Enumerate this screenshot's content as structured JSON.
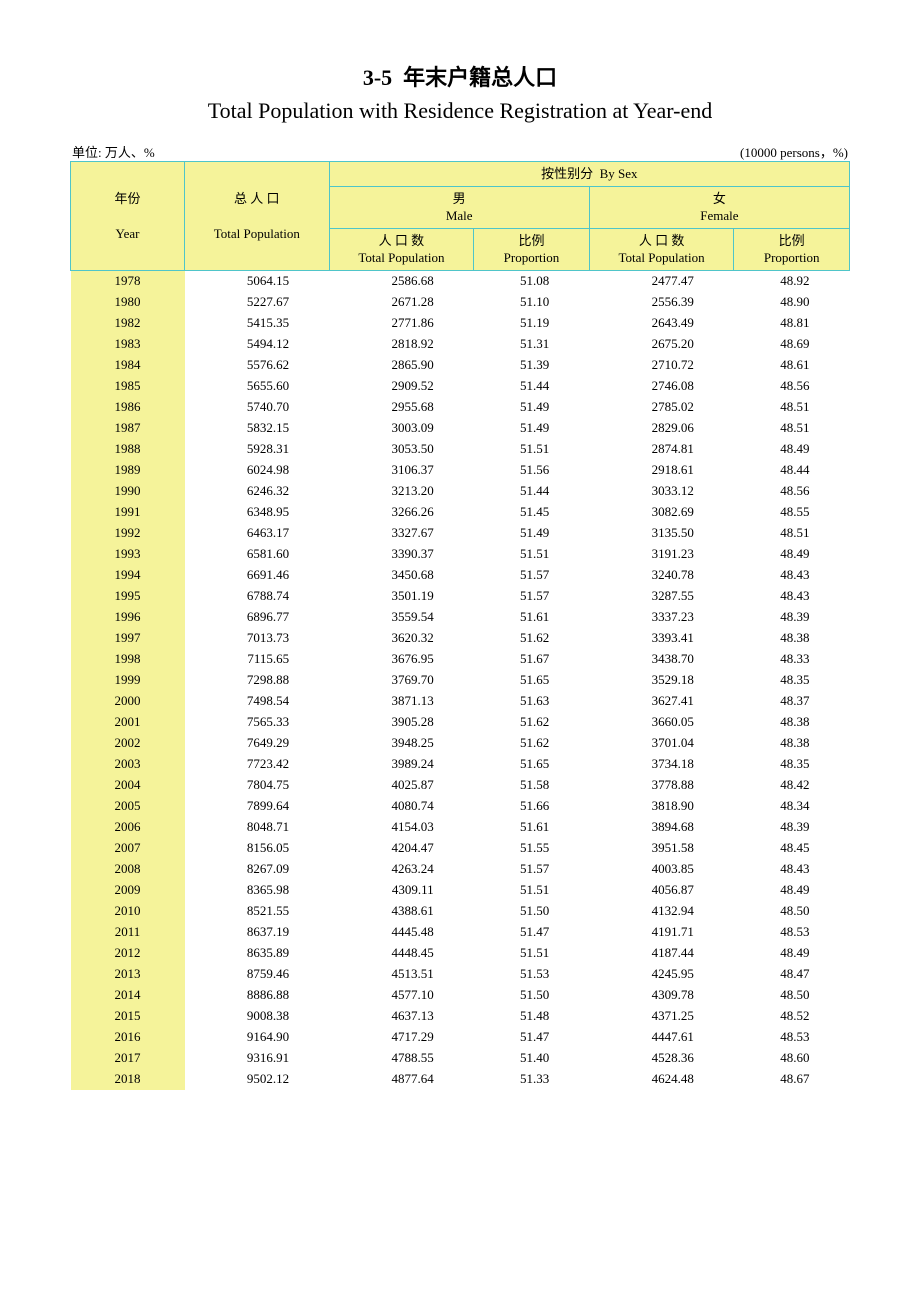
{
  "title": {
    "number": "3-5",
    "cn": "年末户籍总人口",
    "en": "Total Population with Residence Registration at Year-end"
  },
  "unit": {
    "left": "单位: 万人、%",
    "right": "(10000 persons，%)"
  },
  "header": {
    "year_cn": "年份",
    "year_en": "Year",
    "total_cn": "总 人 口",
    "total_en": "Total Population",
    "bysex_cn": "按性别分",
    "bysex_en": "By Sex",
    "male_cn": "男",
    "male_en": "Male",
    "female_cn": "女",
    "female_en": "Female",
    "pop_cn": "人 口 数",
    "pop_en": "Total Population",
    "prop_cn": "比例",
    "prop_en": "Proportion"
  },
  "styling": {
    "header_bg": "#f5f39a",
    "border_color": "#4fc5c9",
    "page_bg": "#ffffff",
    "text_color": "#000000",
    "title_fontsize": 22,
    "body_fontsize": 13,
    "columns": [
      "year",
      "total",
      "male_pop",
      "male_prop",
      "female_pop",
      "female_prop"
    ],
    "column_align": [
      "center",
      "right",
      "right",
      "right",
      "right",
      "right"
    ]
  },
  "rows": [
    {
      "year": "1978",
      "total": "5064.15",
      "male_pop": "2586.68",
      "male_prop": "51.08",
      "female_pop": "2477.47",
      "female_prop": "48.92"
    },
    {
      "year": "1980",
      "total": "5227.67",
      "male_pop": "2671.28",
      "male_prop": "51.10",
      "female_pop": "2556.39",
      "female_prop": "48.90"
    },
    {
      "year": "1982",
      "total": "5415.35",
      "male_pop": "2771.86",
      "male_prop": "51.19",
      "female_pop": "2643.49",
      "female_prop": "48.81"
    },
    {
      "year": "1983",
      "total": "5494.12",
      "male_pop": "2818.92",
      "male_prop": "51.31",
      "female_pop": "2675.20",
      "female_prop": "48.69"
    },
    {
      "year": "1984",
      "total": "5576.62",
      "male_pop": "2865.90",
      "male_prop": "51.39",
      "female_pop": "2710.72",
      "female_prop": "48.61"
    },
    {
      "year": "1985",
      "total": "5655.60",
      "male_pop": "2909.52",
      "male_prop": "51.44",
      "female_pop": "2746.08",
      "female_prop": "48.56"
    },
    {
      "year": "1986",
      "total": "5740.70",
      "male_pop": "2955.68",
      "male_prop": "51.49",
      "female_pop": "2785.02",
      "female_prop": "48.51"
    },
    {
      "year": "1987",
      "total": "5832.15",
      "male_pop": "3003.09",
      "male_prop": "51.49",
      "female_pop": "2829.06",
      "female_prop": "48.51"
    },
    {
      "year": "1988",
      "total": "5928.31",
      "male_pop": "3053.50",
      "male_prop": "51.51",
      "female_pop": "2874.81",
      "female_prop": "48.49"
    },
    {
      "year": "1989",
      "total": "6024.98",
      "male_pop": "3106.37",
      "male_prop": "51.56",
      "female_pop": "2918.61",
      "female_prop": "48.44"
    },
    {
      "year": "1990",
      "total": "6246.32",
      "male_pop": "3213.20",
      "male_prop": "51.44",
      "female_pop": "3033.12",
      "female_prop": "48.56"
    },
    {
      "year": "1991",
      "total": "6348.95",
      "male_pop": "3266.26",
      "male_prop": "51.45",
      "female_pop": "3082.69",
      "female_prop": "48.55"
    },
    {
      "year": "1992",
      "total": "6463.17",
      "male_pop": "3327.67",
      "male_prop": "51.49",
      "female_pop": "3135.50",
      "female_prop": "48.51"
    },
    {
      "year": "1993",
      "total": "6581.60",
      "male_pop": "3390.37",
      "male_prop": "51.51",
      "female_pop": "3191.23",
      "female_prop": "48.49"
    },
    {
      "year": "1994",
      "total": "6691.46",
      "male_pop": "3450.68",
      "male_prop": "51.57",
      "female_pop": "3240.78",
      "female_prop": "48.43"
    },
    {
      "year": "1995",
      "total": "6788.74",
      "male_pop": "3501.19",
      "male_prop": "51.57",
      "female_pop": "3287.55",
      "female_prop": "48.43"
    },
    {
      "year": "1996",
      "total": "6896.77",
      "male_pop": "3559.54",
      "male_prop": "51.61",
      "female_pop": "3337.23",
      "female_prop": "48.39"
    },
    {
      "year": "1997",
      "total": "7013.73",
      "male_pop": "3620.32",
      "male_prop": "51.62",
      "female_pop": "3393.41",
      "female_prop": "48.38"
    },
    {
      "year": "1998",
      "total": "7115.65",
      "male_pop": "3676.95",
      "male_prop": "51.67",
      "female_pop": "3438.70",
      "female_prop": "48.33"
    },
    {
      "year": "1999",
      "total": "7298.88",
      "male_pop": "3769.70",
      "male_prop": "51.65",
      "female_pop": "3529.18",
      "female_prop": "48.35"
    },
    {
      "year": "2000",
      "total": "7498.54",
      "male_pop": "3871.13",
      "male_prop": "51.63",
      "female_pop": "3627.41",
      "female_prop": "48.37"
    },
    {
      "year": "2001",
      "total": "7565.33",
      "male_pop": "3905.28",
      "male_prop": "51.62",
      "female_pop": "3660.05",
      "female_prop": "48.38"
    },
    {
      "year": "2002",
      "total": "7649.29",
      "male_pop": "3948.25",
      "male_prop": "51.62",
      "female_pop": "3701.04",
      "female_prop": "48.38"
    },
    {
      "year": "2003",
      "total": "7723.42",
      "male_pop": "3989.24",
      "male_prop": "51.65",
      "female_pop": "3734.18",
      "female_prop": "48.35"
    },
    {
      "year": "2004",
      "total": "7804.75",
      "male_pop": "4025.87",
      "male_prop": "51.58",
      "female_pop": "3778.88",
      "female_prop": "48.42"
    },
    {
      "year": "2005",
      "total": "7899.64",
      "male_pop": "4080.74",
      "male_prop": "51.66",
      "female_pop": "3818.90",
      "female_prop": "48.34"
    },
    {
      "year": "2006",
      "total": "8048.71",
      "male_pop": "4154.03",
      "male_prop": "51.61",
      "female_pop": "3894.68",
      "female_prop": "48.39"
    },
    {
      "year": "2007",
      "total": "8156.05",
      "male_pop": "4204.47",
      "male_prop": "51.55",
      "female_pop": "3951.58",
      "female_prop": "48.45"
    },
    {
      "year": "2008",
      "total": "8267.09",
      "male_pop": "4263.24",
      "male_prop": "51.57",
      "female_pop": "4003.85",
      "female_prop": "48.43"
    },
    {
      "year": "2009",
      "total": "8365.98",
      "male_pop": "4309.11",
      "male_prop": "51.51",
      "female_pop": "4056.87",
      "female_prop": "48.49"
    },
    {
      "year": "2010",
      "total": "8521.55",
      "male_pop": "4388.61",
      "male_prop": "51.50",
      "female_pop": "4132.94",
      "female_prop": "48.50"
    },
    {
      "year": "2011",
      "total": "8637.19",
      "male_pop": "4445.48",
      "male_prop": "51.47",
      "female_pop": "4191.71",
      "female_prop": "48.53"
    },
    {
      "year": "2012",
      "total": "8635.89",
      "male_pop": "4448.45",
      "male_prop": "51.51",
      "female_pop": "4187.44",
      "female_prop": "48.49"
    },
    {
      "year": "2013",
      "total": "8759.46",
      "male_pop": "4513.51",
      "male_prop": "51.53",
      "female_pop": "4245.95",
      "female_prop": "48.47"
    },
    {
      "year": "2014",
      "total": "8886.88",
      "male_pop": "4577.10",
      "male_prop": "51.50",
      "female_pop": "4309.78",
      "female_prop": "48.50"
    },
    {
      "year": "2015",
      "total": "9008.38",
      "male_pop": "4637.13",
      "male_prop": "51.48",
      "female_pop": "4371.25",
      "female_prop": "48.52"
    },
    {
      "year": "2016",
      "total": "9164.90",
      "male_pop": "4717.29",
      "male_prop": "51.47",
      "female_pop": "4447.61",
      "female_prop": "48.53"
    },
    {
      "year": "2017",
      "total": "9316.91",
      "male_pop": "4788.55",
      "male_prop": "51.40",
      "female_pop": "4528.36",
      "female_prop": "48.60"
    },
    {
      "year": "2018",
      "total": "9502.12",
      "male_pop": "4877.64",
      "male_prop": "51.33",
      "female_pop": "4624.48",
      "female_prop": "48.67"
    }
  ]
}
